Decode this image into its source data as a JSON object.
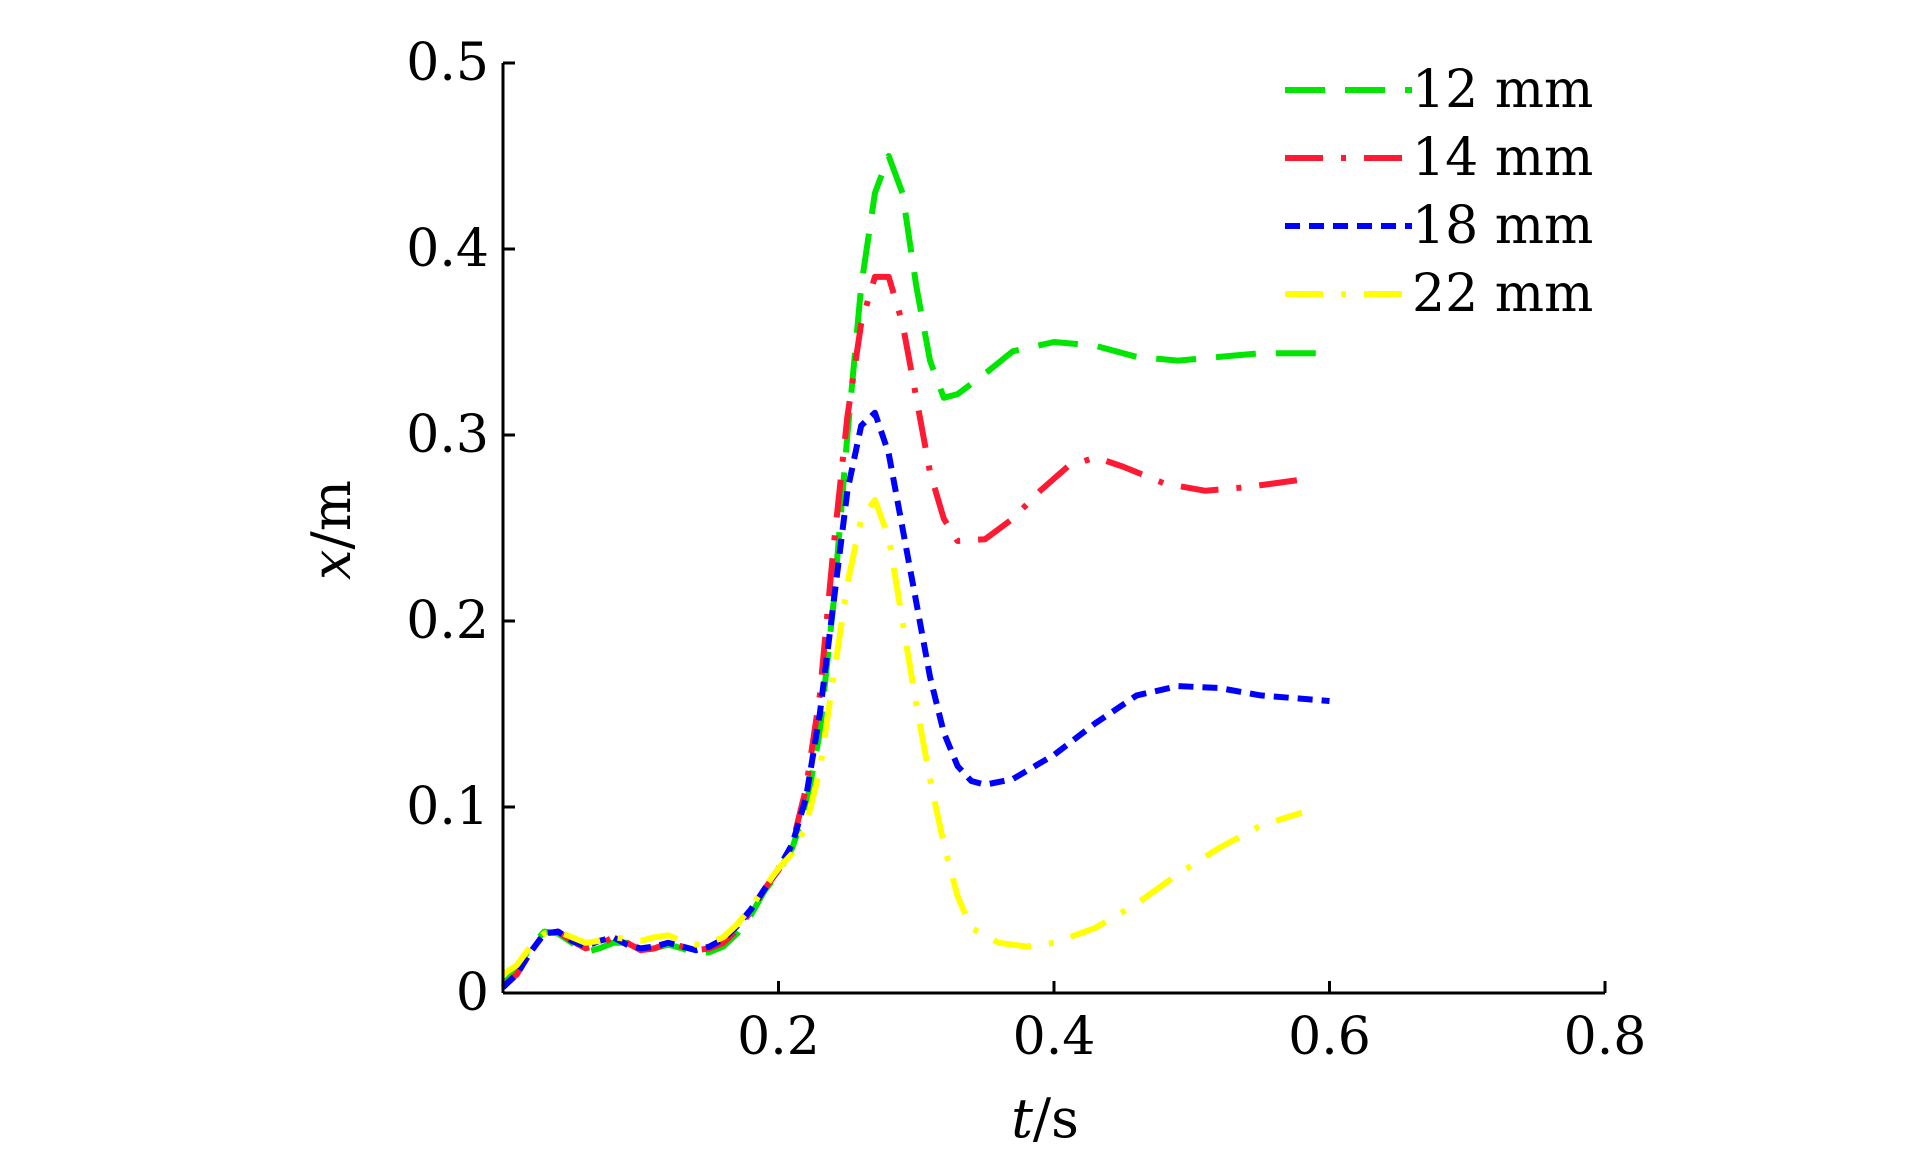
{
  "chart_data": {
    "type": "line",
    "xlabel_var": "t",
    "xlabel_unit": "/s",
    "ylabel_var": "x",
    "ylabel_unit": "/m",
    "xlim": [
      0,
      0.8
    ],
    "ylim": [
      0,
      0.5
    ],
    "xticks": [
      {
        "v": 0.2,
        "label": "0.2"
      },
      {
        "v": 0.4,
        "label": "0.4"
      },
      {
        "v": 0.6,
        "label": "0.6"
      },
      {
        "v": 0.8,
        "label": "0.8"
      }
    ],
    "yticks": [
      {
        "v": 0,
        "label": "0"
      },
      {
        "v": 0.1,
        "label": "0.1"
      },
      {
        "v": 0.2,
        "label": "0.2"
      },
      {
        "v": 0.3,
        "label": "0.3"
      },
      {
        "v": 0.4,
        "label": "0.4"
      },
      {
        "v": 0.5,
        "label": "0.5"
      }
    ],
    "grid": false,
    "legend_position": "top-right",
    "series": [
      {
        "name": "12 mm",
        "color": "#00e600",
        "dash": "long-dash",
        "points": [
          [
            0,
            0.005
          ],
          [
            0.01,
            0.012
          ],
          [
            0.02,
            0.025
          ],
          [
            0.03,
            0.033
          ],
          [
            0.04,
            0.032
          ],
          [
            0.05,
            0.027
          ],
          [
            0.06,
            0.022
          ],
          [
            0.07,
            0.024
          ],
          [
            0.08,
            0.027
          ],
          [
            0.09,
            0.027
          ],
          [
            0.1,
            0.023
          ],
          [
            0.11,
            0.024
          ],
          [
            0.12,
            0.026
          ],
          [
            0.13,
            0.024
          ],
          [
            0.14,
            0.021
          ],
          [
            0.15,
            0.022
          ],
          [
            0.16,
            0.025
          ],
          [
            0.17,
            0.032
          ],
          [
            0.18,
            0.042
          ],
          [
            0.19,
            0.055
          ],
          [
            0.2,
            0.065
          ],
          [
            0.21,
            0.078
          ],
          [
            0.22,
            0.1
          ],
          [
            0.23,
            0.14
          ],
          [
            0.24,
            0.21
          ],
          [
            0.25,
            0.3
          ],
          [
            0.26,
            0.38
          ],
          [
            0.27,
            0.43
          ],
          [
            0.28,
            0.45
          ],
          [
            0.29,
            0.43
          ],
          [
            0.3,
            0.38
          ],
          [
            0.31,
            0.34
          ],
          [
            0.32,
            0.32
          ],
          [
            0.33,
            0.322
          ],
          [
            0.35,
            0.333
          ],
          [
            0.37,
            0.345
          ],
          [
            0.4,
            0.35
          ],
          [
            0.43,
            0.348
          ],
          [
            0.46,
            0.342
          ],
          [
            0.49,
            0.34
          ],
          [
            0.52,
            0.342
          ],
          [
            0.55,
            0.344
          ],
          [
            0.6,
            0.344
          ]
        ]
      },
      {
        "name": "14 mm",
        "color": "#ff1a33",
        "dash": "long-dash-dot",
        "points": [
          [
            0,
            0.004
          ],
          [
            0.01,
            0.01
          ],
          [
            0.02,
            0.022
          ],
          [
            0.03,
            0.032
          ],
          [
            0.04,
            0.033
          ],
          [
            0.05,
            0.028
          ],
          [
            0.06,
            0.024
          ],
          [
            0.07,
            0.026
          ],
          [
            0.08,
            0.03
          ],
          [
            0.09,
            0.027
          ],
          [
            0.1,
            0.023
          ],
          [
            0.11,
            0.024
          ],
          [
            0.12,
            0.027
          ],
          [
            0.13,
            0.025
          ],
          [
            0.14,
            0.023
          ],
          [
            0.15,
            0.024
          ],
          [
            0.16,
            0.027
          ],
          [
            0.17,
            0.034
          ],
          [
            0.18,
            0.044
          ],
          [
            0.19,
            0.056
          ],
          [
            0.2,
            0.066
          ],
          [
            0.21,
            0.08
          ],
          [
            0.22,
            0.11
          ],
          [
            0.23,
            0.16
          ],
          [
            0.24,
            0.24
          ],
          [
            0.25,
            0.31
          ],
          [
            0.26,
            0.36
          ],
          [
            0.27,
            0.385
          ],
          [
            0.28,
            0.385
          ],
          [
            0.29,
            0.36
          ],
          [
            0.3,
            0.32
          ],
          [
            0.31,
            0.28
          ],
          [
            0.32,
            0.255
          ],
          [
            0.33,
            0.243
          ],
          [
            0.35,
            0.244
          ],
          [
            0.37,
            0.255
          ],
          [
            0.39,
            0.27
          ],
          [
            0.41,
            0.283
          ],
          [
            0.43,
            0.288
          ],
          [
            0.45,
            0.283
          ],
          [
            0.48,
            0.274
          ],
          [
            0.51,
            0.27
          ],
          [
            0.54,
            0.272
          ],
          [
            0.58,
            0.276
          ]
        ]
      },
      {
        "name": "18 mm",
        "color": "#0000ff",
        "dash": "short-dash",
        "points": [
          [
            0,
            0.003
          ],
          [
            0.01,
            0.01
          ],
          [
            0.02,
            0.022
          ],
          [
            0.03,
            0.032
          ],
          [
            0.04,
            0.033
          ],
          [
            0.05,
            0.028
          ],
          [
            0.06,
            0.025
          ],
          [
            0.07,
            0.028
          ],
          [
            0.08,
            0.03
          ],
          [
            0.09,
            0.026
          ],
          [
            0.1,
            0.024
          ],
          [
            0.11,
            0.025
          ],
          [
            0.12,
            0.027
          ],
          [
            0.13,
            0.025
          ],
          [
            0.14,
            0.023
          ],
          [
            0.15,
            0.025
          ],
          [
            0.16,
            0.029
          ],
          [
            0.17,
            0.036
          ],
          [
            0.18,
            0.045
          ],
          [
            0.19,
            0.056
          ],
          [
            0.2,
            0.067
          ],
          [
            0.21,
            0.08
          ],
          [
            0.22,
            0.105
          ],
          [
            0.23,
            0.15
          ],
          [
            0.24,
            0.21
          ],
          [
            0.25,
            0.27
          ],
          [
            0.26,
            0.305
          ],
          [
            0.27,
            0.312
          ],
          [
            0.28,
            0.29
          ],
          [
            0.29,
            0.25
          ],
          [
            0.3,
            0.21
          ],
          [
            0.31,
            0.17
          ],
          [
            0.32,
            0.14
          ],
          [
            0.33,
            0.122
          ],
          [
            0.34,
            0.114
          ],
          [
            0.35,
            0.112
          ],
          [
            0.37,
            0.115
          ],
          [
            0.4,
            0.128
          ],
          [
            0.43,
            0.145
          ],
          [
            0.46,
            0.16
          ],
          [
            0.49,
            0.165
          ],
          [
            0.52,
            0.164
          ],
          [
            0.55,
            0.16
          ],
          [
            0.6,
            0.157
          ]
        ]
      },
      {
        "name": "22 mm",
        "color": "#ffff00",
        "dash": "long-dash-dot",
        "points": [
          [
            0,
            0.01
          ],
          [
            0.01,
            0.015
          ],
          [
            0.02,
            0.025
          ],
          [
            0.03,
            0.032
          ],
          [
            0.04,
            0.033
          ],
          [
            0.05,
            0.03
          ],
          [
            0.06,
            0.027
          ],
          [
            0.07,
            0.028
          ],
          [
            0.08,
            0.03
          ],
          [
            0.09,
            0.029
          ],
          [
            0.1,
            0.028
          ],
          [
            0.11,
            0.03
          ],
          [
            0.12,
            0.031
          ],
          [
            0.13,
            0.028
          ],
          [
            0.14,
            0.026
          ],
          [
            0.15,
            0.027
          ],
          [
            0.16,
            0.03
          ],
          [
            0.17,
            0.037
          ],
          [
            0.18,
            0.046
          ],
          [
            0.19,
            0.057
          ],
          [
            0.2,
            0.067
          ],
          [
            0.21,
            0.075
          ],
          [
            0.22,
            0.09
          ],
          [
            0.23,
            0.12
          ],
          [
            0.24,
            0.17
          ],
          [
            0.25,
            0.22
          ],
          [
            0.26,
            0.255
          ],
          [
            0.27,
            0.265
          ],
          [
            0.28,
            0.245
          ],
          [
            0.29,
            0.2
          ],
          [
            0.3,
            0.155
          ],
          [
            0.31,
            0.115
          ],
          [
            0.32,
            0.08
          ],
          [
            0.33,
            0.052
          ],
          [
            0.34,
            0.035
          ],
          [
            0.36,
            0.027
          ],
          [
            0.38,
            0.025
          ],
          [
            0.4,
            0.027
          ],
          [
            0.43,
            0.035
          ],
          [
            0.46,
            0.048
          ],
          [
            0.49,
            0.064
          ],
          [
            0.52,
            0.078
          ],
          [
            0.55,
            0.09
          ],
          [
            0.58,
            0.097
          ]
        ]
      }
    ]
  }
}
